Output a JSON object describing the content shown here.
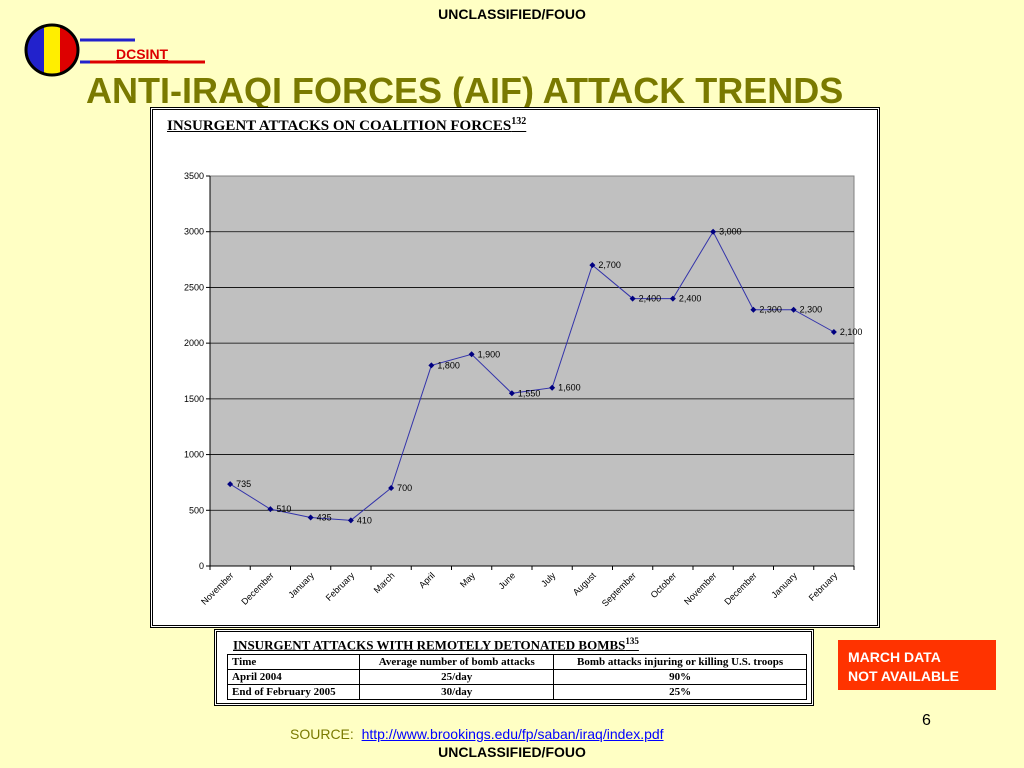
{
  "classification_top": "UNCLASSIFIED/FOUO",
  "classification_bottom": "UNCLASSIFIED/FOUO",
  "logo_text": "DCSINT",
  "slide_title": "ANTI-IRAQI FORCES (AIF) ATTACK TRENDS",
  "chart_title": "INSURGENT ATTACKS ON COALITION FORCES",
  "chart_title_note": "132",
  "chart_data": {
    "type": "line",
    "title": "INSURGENT ATTACKS ON COALITION FORCES",
    "categories": [
      "November",
      "December",
      "January",
      "February",
      "March",
      "April",
      "May",
      "June",
      "July",
      "August",
      "September",
      "October",
      "November",
      "December",
      "January",
      "February"
    ],
    "series": [
      {
        "values": [
          735,
          510,
          435,
          410,
          700,
          1800,
          1900,
          1550,
          1600,
          2700,
          2400,
          2400,
          3000,
          2300,
          2300,
          2100
        ]
      }
    ],
    "data_labels": [
      "735",
      "510",
      "435",
      "410",
      "700",
      "1,800",
      "1,900",
      "1,550",
      "1,600",
      "2,700",
      "2,400",
      "2,400",
      "3,000",
      "2,300",
      "2,300",
      "2,100"
    ],
    "y_ticks": [
      "0",
      "500",
      "1000",
      "1500",
      "2000",
      "2500",
      "3000",
      "3500"
    ],
    "ylim": [
      0,
      3500
    ],
    "grid": true,
    "xlabel": "",
    "ylabel": "",
    "colors": {
      "line": "#3333aa",
      "marker": "#000080",
      "plot_bg": "#c0c0c0"
    }
  },
  "bomb_table": {
    "title": "INSURGENT ATTACKS WITH REMOTELY DETONATED BOMBS",
    "title_note": "135",
    "headers": [
      "Time",
      "Average number  of  bomb attacks",
      "Bomb attacks injuring or killing U.S. troops"
    ],
    "rows": [
      [
        "April 2004",
        "25/day",
        "90%"
      ],
      [
        "End of February 2005",
        "30/day",
        "25%"
      ]
    ]
  },
  "march_note": {
    "line1": "MARCH DATA",
    "line2": "NOT AVAILABLE"
  },
  "page_number": "6",
  "source_label": "SOURCE:",
  "source_url": "http://www.brookings.edu/fp/saban/iraq/index.pdf"
}
